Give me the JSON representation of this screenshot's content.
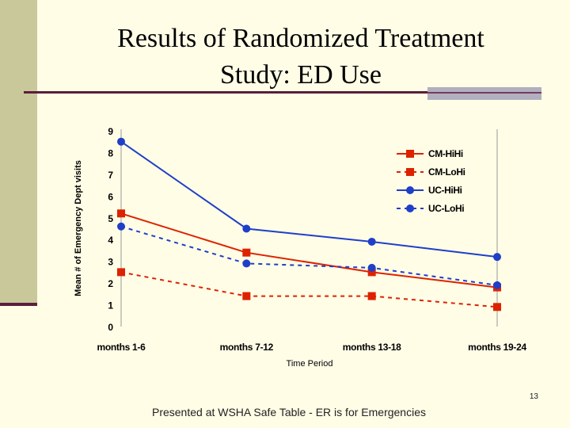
{
  "slide": {
    "title_line1": "Results of Randomized Treatment",
    "title_line2": "Study: ED Use",
    "footer": "Presented at WSHA Safe Table - ER is for Emergencies",
    "page_number": "13"
  },
  "chart_data": {
    "type": "line",
    "categories": [
      "months 1-6",
      "months 7-12",
      "months 13-18",
      "months 19-24"
    ],
    "xlabel": "Time Period",
    "ylabel": "Mean # of Emergency Dept visits",
    "ylim": [
      0,
      9
    ],
    "yticks": [
      "0",
      "1",
      "2",
      "3",
      "4",
      "5",
      "6",
      "7",
      "8",
      "9"
    ],
    "legend_position": "top-right",
    "series": [
      {
        "name": "CM-HiHi",
        "values": [
          5.2,
          3.4,
          2.5,
          1.8
        ],
        "color": "#dd2200",
        "marker": "square",
        "dashed": false
      },
      {
        "name": "CM-LoHi",
        "values": [
          2.5,
          1.4,
          1.4,
          0.9
        ],
        "color": "#dd2200",
        "marker": "square",
        "dashed": true
      },
      {
        "name": "UC-HiHi",
        "values": [
          8.5,
          4.5,
          3.9,
          3.2
        ],
        "color": "#1f3fc8",
        "marker": "circle",
        "dashed": false
      },
      {
        "name": "UC-LoHi",
        "values": [
          4.6,
          2.9,
          2.7,
          1.9
        ],
        "color": "#1f3fc8",
        "marker": "circle",
        "dashed": true
      }
    ]
  }
}
